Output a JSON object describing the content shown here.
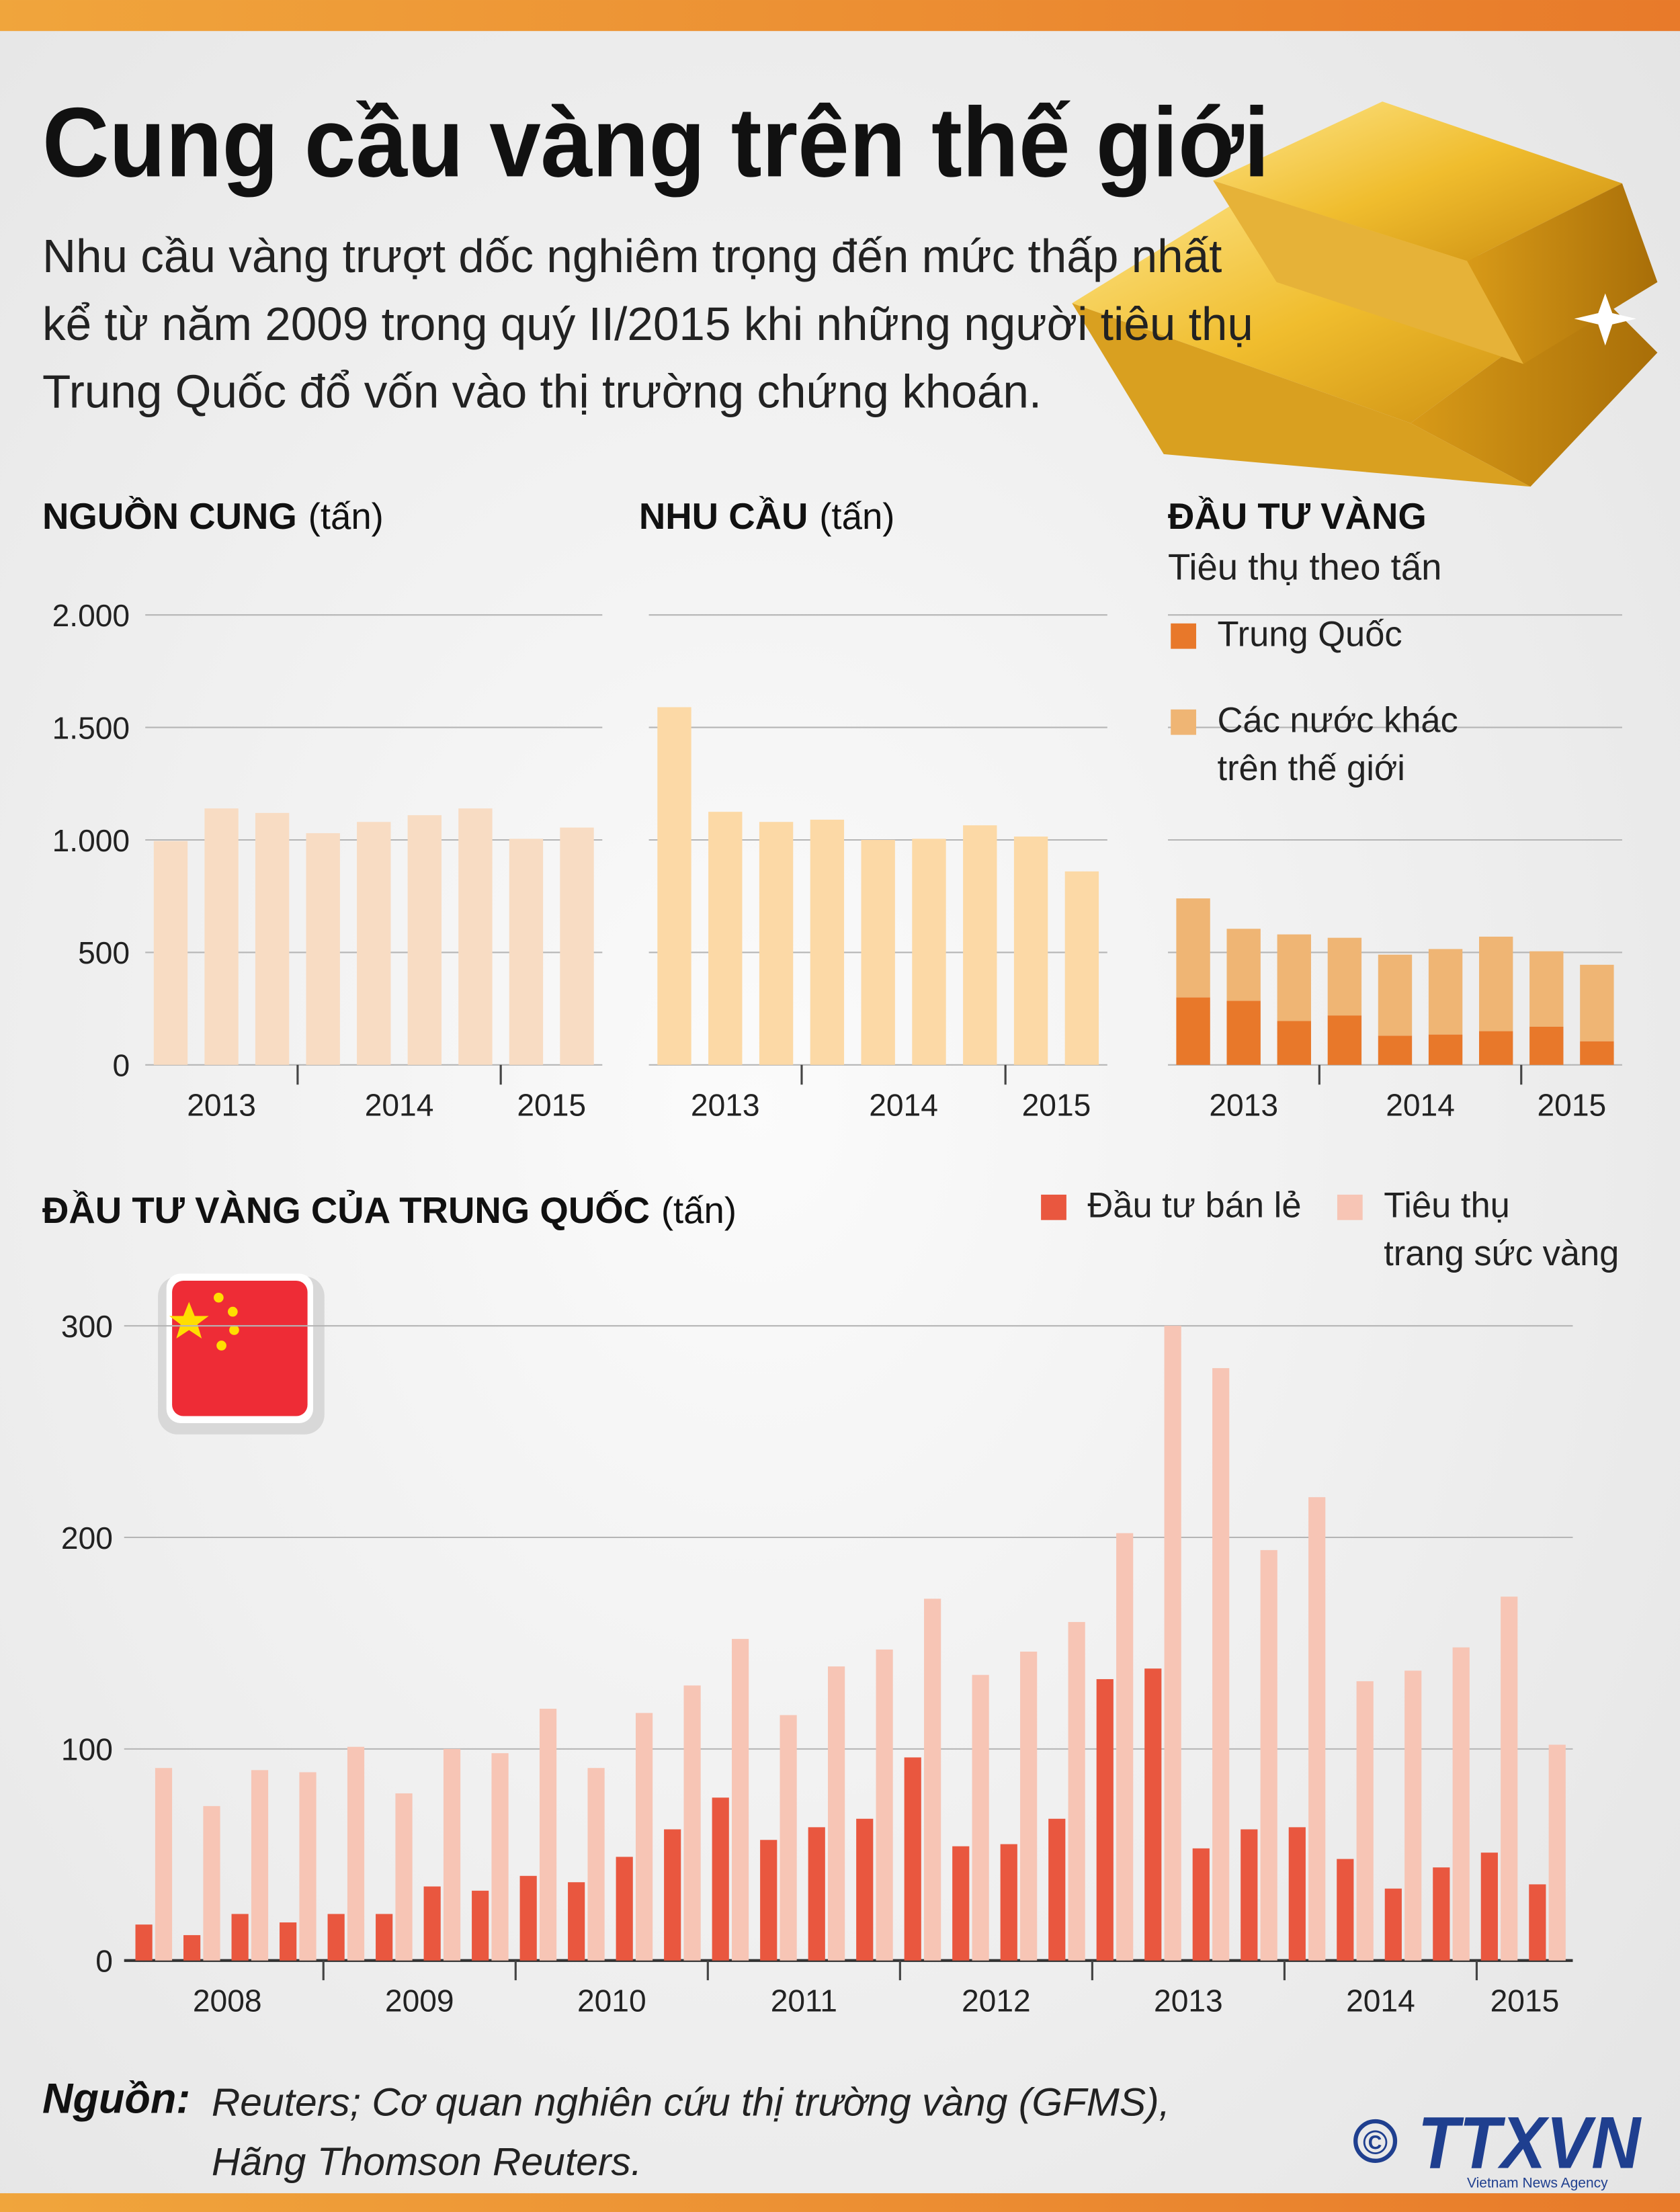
{
  "header": {
    "title": "Cung cầu vàng trên thế giới",
    "description": "Nhu cầu vàng trượt dốc nghiêm trọng đến mức thấp nhất\nkể từ năm 2009 trong quý II/2015 khi những người tiêu thụ\nTrung Quốc đổ vốn vào thị trường chứng khoán."
  },
  "chart_data": [
    {
      "type": "bar",
      "title": "NGUỒN CUNG",
      "unit": "(tấn)",
      "categories": [
        "2013",
        null,
        null,
        "2014",
        null,
        null,
        null,
        "2015",
        null
      ],
      "values": [
        995,
        1140,
        1120,
        1030,
        1080,
        1110,
        1140,
        1005,
        1055
      ],
      "color": "#f8dcc3",
      "ylim": [
        0,
        2000
      ],
      "yticks": [
        0,
        500,
        {
          "value": 1000,
          "label": "1.000"
        },
        {
          "value": 1500,
          "label": "1.500"
        },
        {
          "value": 2000,
          "label": "2.000"
        }
      ],
      "grid": true
    },
    {
      "type": "bar",
      "title": "NHU CẦU",
      "unit": "(tấn)",
      "categories": [
        "2013",
        null,
        null,
        "2014",
        null,
        null,
        null,
        "2015",
        null
      ],
      "values": [
        1590,
        1125,
        1080,
        1090,
        1000,
        1005,
        1065,
        1015,
        860
      ],
      "color": "#fcd9a6",
      "ylim": [
        0,
        2000
      ],
      "yticks": [
        0,
        500,
        1000,
        1500,
        2000
      ],
      "grid": true
    },
    {
      "type": "stacked_bar",
      "title": "ĐẦU TƯ VÀNG",
      "subtitle": "Tiêu thụ theo tấn",
      "categories": [
        "2013",
        null,
        null,
        "2014",
        null,
        null,
        null,
        "2015",
        null
      ],
      "series": [
        {
          "name": "Trung Quốc",
          "color": "#e8782a",
          "values": [
            300,
            285,
            195,
            220,
            130,
            135,
            150,
            170,
            105
          ]
        },
        {
          "name": "Các nước khác\ntrên thế giới",
          "color": "#efb574",
          "values": [
            440,
            320,
            385,
            345,
            360,
            380,
            420,
            335,
            340
          ]
        }
      ],
      "ylim": [
        0,
        2000
      ],
      "yticks": [
        0,
        500,
        1000,
        1500,
        2000
      ],
      "grid": true
    },
    {
      "type": "grouped_bar",
      "title": "ĐẦU TƯ VÀNG CỦA TRUNG QUỐC",
      "unit": "(tấn)",
      "categories": [
        "2008",
        null,
        null,
        null,
        "2009",
        null,
        null,
        null,
        "2010",
        null,
        null,
        null,
        "2011",
        null,
        null,
        null,
        "2012",
        null,
        null,
        null,
        "2013",
        null,
        null,
        null,
        "2014",
        null,
        null,
        null,
        "2015",
        null
      ],
      "series": [
        {
          "name": "Đầu tư bán lẻ",
          "color": "#e9573f",
          "values": [
            17,
            12,
            22,
            18,
            22,
            22,
            35,
            33,
            40,
            37,
            49,
            62,
            77,
            57,
            63,
            67,
            96,
            54,
            55,
            67,
            133,
            138,
            53,
            62,
            63,
            48,
            34,
            44,
            51,
            36
          ]
        },
        {
          "name": "Tiêu thụ\ntrang sức vàng",
          "color": "#f7c5b5",
          "values": [
            91,
            73,
            90,
            89,
            101,
            79,
            100,
            98,
            119,
            91,
            117,
            130,
            152,
            116,
            139,
            147,
            171,
            135,
            146,
            160,
            202,
            300,
            280,
            194,
            219,
            132,
            137,
            148,
            172,
            102
          ]
        }
      ],
      "ylim": [
        0,
        300
      ],
      "yticks": [
        0,
        100,
        200,
        300
      ],
      "grid": true
    }
  ],
  "source": {
    "label": "Nguồn:",
    "text": "Reuters; Cơ quan nghiên cứu thị trường vàng (GFMS),\nHãng Thomson Reuters."
  },
  "logo": {
    "copyright": "©",
    "name": "TTXVN",
    "tagline": "Vietnam News Agency"
  }
}
